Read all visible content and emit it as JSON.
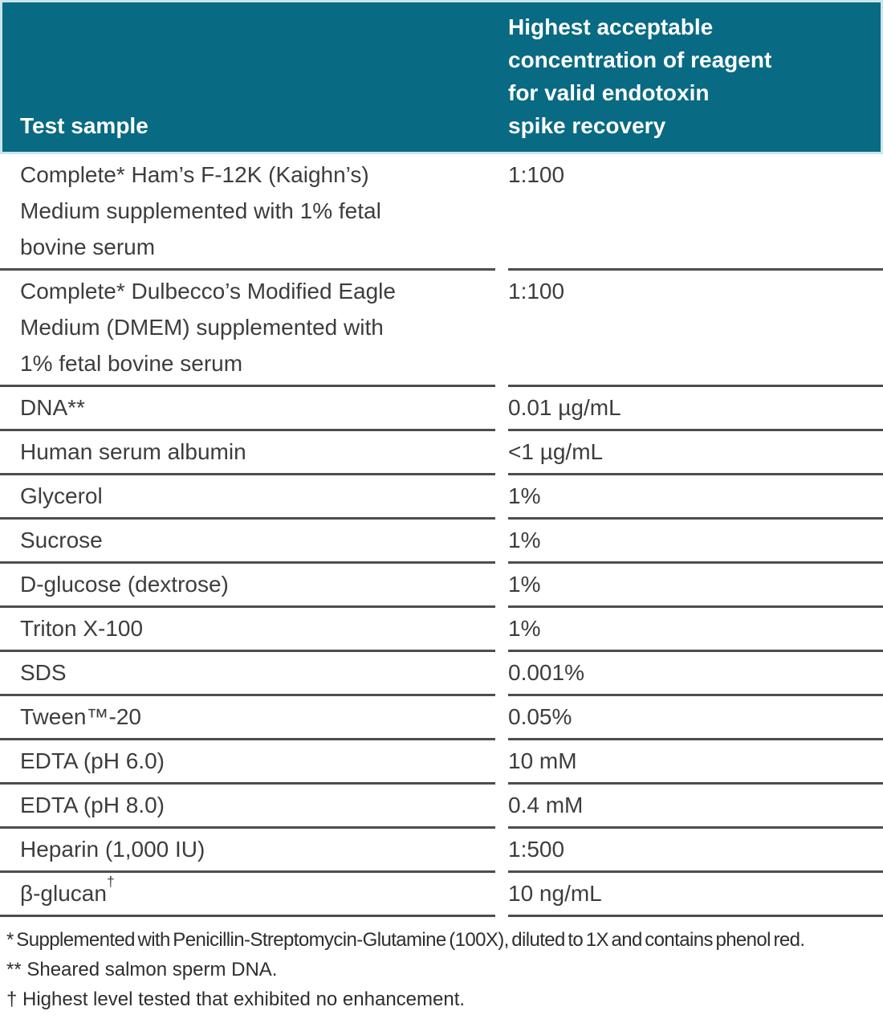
{
  "colors": {
    "header_bg": "#086a83",
    "header_text": "#ffffff",
    "header_border": "#c9e6f0",
    "divider": "#4d4d4d",
    "body_text": "#3d3d3d",
    "footnote_text": "#2e2e2e",
    "page_bg": "#ffffff"
  },
  "table": {
    "header": {
      "col1": "Test sample",
      "col2": "Highest acceptable concentration of reagent for valid endotoxin spike recovery",
      "col2_lines": [
        "Highest acceptable",
        "concentration of reagent",
        "for valid endotoxin",
        "spike recovery"
      ]
    },
    "rows": [
      {
        "sample": "Complete* Ham’s F-12K (Kaighn’s) Medium supplemented with 1% fetal bovine serum",
        "sample_lines": [
          "Complete* Ham’s F-12K (Kaighn’s)",
          "Medium supplemented with 1% fetal",
          "bovine serum"
        ],
        "value": "1:100"
      },
      {
        "sample": "Complete* Dulbecco’s Modified Eagle Medium (DMEM) supplemented with 1% fetal bovine serum",
        "sample_lines": [
          "Complete* Dulbecco’s Modified Eagle",
          "Medium (DMEM) supplemented with",
          "1% fetal bovine serum"
        ],
        "value": "1:100"
      },
      {
        "sample": "DNA**",
        "value": "0.01 µg/mL"
      },
      {
        "sample": "Human serum albumin",
        "value": "<1 µg/mL"
      },
      {
        "sample": "Glycerol",
        "value": "1%"
      },
      {
        "sample": "Sucrose",
        "value": "1%"
      },
      {
        "sample": "D-glucose (dextrose)",
        "value": "1%"
      },
      {
        "sample": "Triton X-100",
        "value": "1%"
      },
      {
        "sample": "SDS",
        "value": "0.001%"
      },
      {
        "sample": "Tween™-20",
        "value": "0.05%"
      },
      {
        "sample": "EDTA (pH 6.0)",
        "value": "10 mM"
      },
      {
        "sample": "EDTA (pH 8.0)",
        "value": "0.4 mM"
      },
      {
        "sample": "Heparin (1,000 IU)",
        "value": "1:500"
      },
      {
        "sample": "β-glucan",
        "sup": "†",
        "value": "10 ng/mL"
      }
    ],
    "footnotes": [
      {
        "text": "* Supplemented with Penicillin-Streptomycin-Glutamine (100X), diluted to 1X and contains phenol red.",
        "condensed": true
      },
      {
        "text": "** Sheared salmon sperm DNA.",
        "condensed": false
      },
      {
        "text": "† Highest level tested that exhibited no enhancement.",
        "condensed": false
      }
    ]
  }
}
